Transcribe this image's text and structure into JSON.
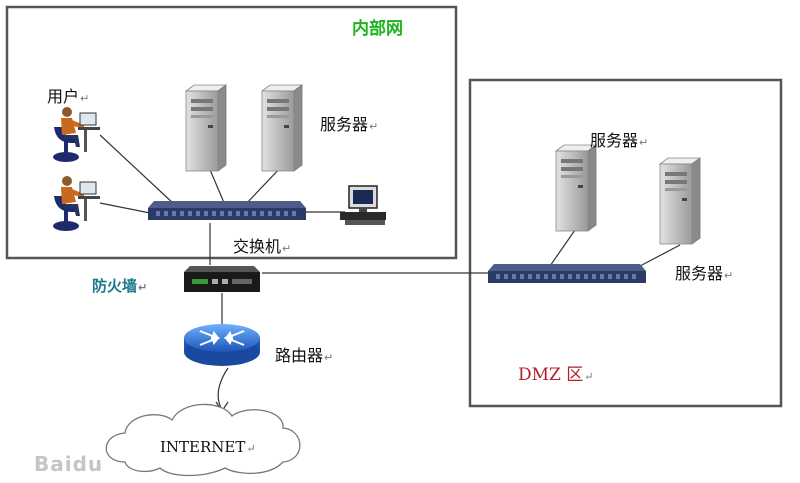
{
  "zones": {
    "intranet": "内部网",
    "dmz": "DMZ 区"
  },
  "labels": {
    "users": "用户",
    "servers_intranet": "服务器",
    "switch": "交换机",
    "firewall": "防火墙",
    "router": "路由器",
    "servers_dmz_top": "服务器",
    "servers_dmz_right": "服务器",
    "internet": "INTERNET"
  },
  "watermark": "Baidu",
  "colors": {
    "intranet_label": "#1fb31f",
    "firewall_label": "#1a7a8a",
    "dmz_label": "#b3202a",
    "router": "#2a6fd6",
    "switch": "#2b3a66",
    "server": "#c8c8c8",
    "zone_border": "#555555"
  },
  "icons": [
    "person-at-computer-icon",
    "server-tower-icon",
    "network-switch-icon",
    "desktop-computer-icon",
    "firewall-device-icon",
    "router-icon",
    "internet-cloud-icon"
  ]
}
